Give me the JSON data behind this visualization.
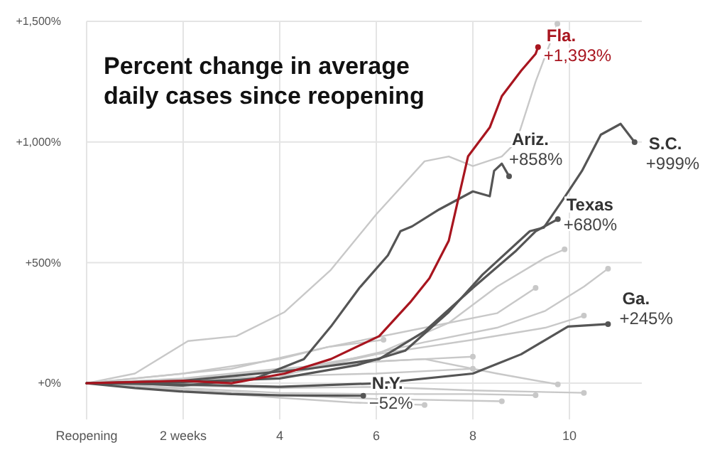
{
  "chart_data": {
    "type": "line",
    "title": "Percent change in average daily cases since reopening",
    "xlim": [
      0,
      11.5
    ],
    "ylim": [
      -150,
      1500
    ],
    "xticks": [
      {
        "value": 0,
        "label": "Reopening"
      },
      {
        "value": 2,
        "label": "2 weeks"
      },
      4,
      6,
      8,
      10
    ],
    "yticks": [
      {
        "value": 0,
        "label": "+0%"
      },
      {
        "value": 500,
        "label": "+500%"
      },
      {
        "value": 1000,
        "label": "+1,000%"
      },
      {
        "value": 1500,
        "label": "+1,500%"
      }
    ],
    "grid": true,
    "series": [
      {
        "name": "Fla.",
        "color": "#a8151f",
        "x": [
          0,
          1,
          2,
          3,
          4.1,
          5.06,
          6.06,
          6.7,
          7.1,
          7.5,
          7.7,
          7.9,
          8.35,
          8.6,
          9.0,
          9.3,
          9.35
        ],
        "values": [
          0,
          5,
          10,
          0,
          40,
          100,
          195,
          335,
          435,
          590,
          765,
          940,
          1060,
          1190,
          1295,
          1365,
          1393
        ]
      },
      {
        "name": "Ariz.",
        "color": "#555555",
        "x": [
          0,
          1,
          2,
          3.5,
          4.5,
          5.06,
          5.65,
          6.24,
          6.5,
          6.74,
          7.3,
          8.0,
          8.35,
          8.44,
          8.6,
          8.75
        ],
        "values": [
          0,
          0,
          -10,
          20,
          100,
          235,
          395,
          530,
          630,
          650,
          720,
          795,
          775,
          880,
          910,
          858
        ]
      },
      {
        "name": "S.C.",
        "color": "#555555",
        "x": [
          0,
          2,
          4,
          5.6,
          6.6,
          7.5,
          8.2,
          9.18,
          9.47,
          9.88,
          10.26,
          10.65,
          11.06,
          11.35
        ],
        "values": [
          0,
          5,
          20,
          75,
          135,
          295,
          450,
          630,
          645,
          765,
          880,
          1030,
          1075,
          999
        ]
      },
      {
        "name": "Texas",
        "color": "#555555",
        "x": [
          0,
          2,
          4.6,
          6.06,
          7.0,
          8.0,
          8.9,
          9.3,
          9.76
        ],
        "values": [
          0,
          10,
          60,
          100,
          215,
          395,
          550,
          630,
          680
        ]
      },
      {
        "name": "Ga.",
        "color": "#555555",
        "x": [
          0,
          2,
          4,
          6.06,
          8.0,
          9.0,
          9.97,
          10.8
        ],
        "values": [
          0,
          -5,
          -15,
          0,
          40,
          120,
          235,
          245
        ]
      },
      {
        "name": "N.Y.",
        "color": "#555555",
        "x": [
          0,
          1,
          2,
          3,
          4,
          5.73
        ],
        "values": [
          0,
          -20,
          -35,
          -45,
          -50,
          -52
        ]
      },
      {
        "color": "#c8c8c8",
        "x": [
          0,
          1,
          2.1,
          3.1,
          4.1,
          5.06,
          6.0,
          7.0,
          7.5,
          8.0,
          8.6,
          8.9,
          9.3,
          9.75
        ],
        "values": [
          0,
          40,
          175,
          195,
          295,
          470,
          700,
          920,
          940,
          900,
          940,
          1000,
          1250,
          1490
        ]
      },
      {
        "color": "#c8c8c8",
        "x": [
          0,
          2,
          4,
          6,
          7.5,
          8.5,
          9.5,
          9.9
        ],
        "values": [
          0,
          10,
          30,
          120,
          250,
          400,
          520,
          555
        ]
      },
      {
        "color": "#c8c8c8",
        "x": [
          0,
          2.5,
          5,
          7,
          8.5,
          9.5,
          10.3,
          10.8
        ],
        "values": [
          0,
          20,
          80,
          170,
          230,
          300,
          400,
          475
        ]
      },
      {
        "color": "#c8c8c8",
        "x": [
          0,
          3,
          5,
          7,
          8.5,
          9.3
        ],
        "values": [
          0,
          60,
          150,
          230,
          290,
          395
        ]
      },
      {
        "color": "#c8c8c8",
        "x": [
          0,
          2,
          4,
          6,
          8,
          9.5,
          10.3
        ],
        "values": [
          0,
          15,
          50,
          120,
          180,
          230,
          280
        ]
      },
      {
        "color": "#c8c8c8",
        "x": [
          0,
          2,
          4,
          5,
          6.15
        ],
        "values": [
          0,
          40,
          100,
          150,
          180
        ]
      },
      {
        "color": "#c8c8c8",
        "x": [
          0,
          2,
          4,
          6,
          7,
          8.0
        ],
        "values": [
          0,
          20,
          60,
          90,
          100,
          110
        ]
      },
      {
        "color": "#c8c8c8",
        "x": [
          0,
          2,
          4,
          6,
          7,
          8.5,
          9.76
        ],
        "values": [
          0,
          10,
          50,
          90,
          100,
          40,
          -5
        ]
      },
      {
        "color": "#c8c8c8",
        "x": [
          0,
          2,
          4,
          6,
          8,
          10.3
        ],
        "values": [
          0,
          -10,
          -20,
          -15,
          -30,
          -40
        ]
      },
      {
        "color": "#c8c8c8",
        "x": [
          0,
          2,
          4,
          6,
          8,
          9.3
        ],
        "values": [
          0,
          -20,
          -40,
          -45,
          -45,
          -50
        ]
      },
      {
        "color": "#c8c8c8",
        "x": [
          0,
          2,
          4,
          5.5,
          7.0
        ],
        "values": [
          0,
          -30,
          -60,
          -80,
          -90
        ]
      },
      {
        "color": "#c8c8c8",
        "x": [
          0,
          2,
          4,
          6,
          8.6
        ],
        "values": [
          0,
          -25,
          -50,
          -65,
          -75
        ]
      },
      {
        "color": "#c8c8c8",
        "x": [
          0,
          2,
          4,
          6,
          7,
          8.0
        ],
        "values": [
          0,
          15,
          30,
          40,
          50,
          60
        ]
      }
    ],
    "annotations": [
      {
        "text": "+1,393%",
        "x": 9.35,
        "y": 1393
      },
      {
        "text": "+858%",
        "x": 8.75,
        "y": 858
      },
      {
        "text": "+999%",
        "x": 11.35,
        "y": 999
      },
      {
        "text": "+680%",
        "x": 9.76,
        "y": 680
      },
      {
        "text": "+245%",
        "x": 10.8,
        "y": 245
      },
      {
        "text": "−52%",
        "x": 5.73,
        "y": -52
      }
    ]
  }
}
